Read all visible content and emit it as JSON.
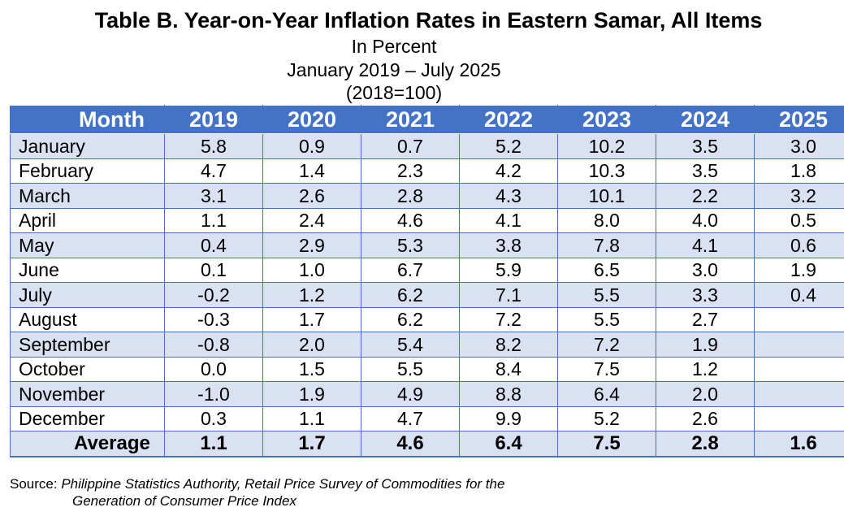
{
  "chart_data": {
    "type": "table",
    "title": "Table B. Year-on-Year Inflation Rates in Eastern Samar, All Items",
    "subtitle_lines": [
      "In Percent",
      "January 2019 – July 2025",
      "(2018=100)"
    ],
    "header": [
      "Month",
      "2019",
      "2020",
      "2021",
      "2022",
      "2023",
      "2024",
      "2025"
    ],
    "rows": [
      {
        "month": "January",
        "values": [
          "5.8",
          "0.9",
          "0.7",
          "5.2",
          "10.2",
          "3.5",
          "3.0"
        ]
      },
      {
        "month": "February",
        "values": [
          "4.7",
          "1.4",
          "2.3",
          "4.2",
          "10.3",
          "3.5",
          "1.8"
        ]
      },
      {
        "month": "March",
        "values": [
          "3.1",
          "2.6",
          "2.8",
          "4.3",
          "10.1",
          "2.2",
          "3.2"
        ]
      },
      {
        "month": "April",
        "values": [
          "1.1",
          "2.4",
          "4.6",
          "4.1",
          "8.0",
          "4.0",
          "0.5"
        ]
      },
      {
        "month": "May",
        "values": [
          "0.4",
          "2.9",
          "5.3",
          "3.8",
          "7.8",
          "4.1",
          "0.6"
        ]
      },
      {
        "month": "June",
        "values": [
          "0.1",
          "1.0",
          "6.7",
          "5.9",
          "6.5",
          "3.0",
          "1.9"
        ]
      },
      {
        "month": "July",
        "values": [
          "-0.2",
          "1.2",
          "6.2",
          "7.1",
          "5.5",
          "3.3",
          "0.4"
        ]
      },
      {
        "month": "August",
        "values": [
          "-0.3",
          "1.7",
          "6.2",
          "7.2",
          "5.5",
          "2.7",
          ""
        ]
      },
      {
        "month": "September",
        "values": [
          "-0.8",
          "2.0",
          "5.4",
          "8.2",
          "7.2",
          "1.9",
          ""
        ]
      },
      {
        "month": "October",
        "values": [
          "0.0",
          "1.5",
          "5.5",
          "8.4",
          "7.5",
          "1.2",
          ""
        ]
      },
      {
        "month": "November",
        "values": [
          "-1.0",
          "1.9",
          "4.9",
          "8.8",
          "6.4",
          "2.0",
          ""
        ]
      },
      {
        "month": "December",
        "values": [
          "0.3",
          "1.1",
          "4.7",
          "9.9",
          "5.2",
          "2.6",
          ""
        ]
      }
    ],
    "average": {
      "label": "Average",
      "values": [
        "1.1",
        "1.7",
        "4.6",
        "6.4",
        "7.5",
        "2.8",
        "1.6"
      ]
    }
  },
  "source": {
    "label": "Source:",
    "line1": "Philippine Statistics Authority, Retail Price Survey of Commodities for the",
    "line2": "Generation of Consumer Price Index"
  },
  "colors": {
    "header_bg": "#4472c4",
    "header_text": "#ffffff",
    "band": "#d9e1f2",
    "border": "#4472c4"
  }
}
